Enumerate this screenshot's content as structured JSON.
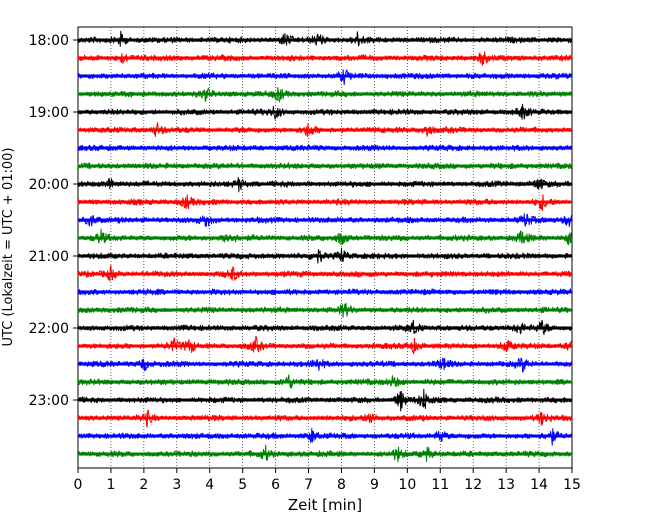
{
  "chart_data": {
    "type": "helicorder",
    "xlabel": "Zeit  [min]",
    "ylabel": "UTC (Lokalzeit = UTC + 01:00)",
    "xlim": [
      0,
      15
    ],
    "x_ticks": [
      "0",
      "1",
      "2",
      "3",
      "4",
      "5",
      "6",
      "7",
      "8",
      "9",
      "10",
      "11",
      "12",
      "13",
      "14",
      "15"
    ],
    "y_tick_labels": [
      "18:00",
      "19:00",
      "20:00",
      "21:00",
      "22:00",
      "23:00"
    ],
    "y_tick_rows": [
      0,
      4,
      8,
      12,
      16,
      20
    ],
    "grid": "vertical dotted lines at each minute",
    "row_colors": [
      "#000000",
      "#ff0000",
      "#0000ff",
      "#008000"
    ],
    "rows": [
      {
        "start": "18:00",
        "events": [
          1.3,
          6.3,
          7.3,
          8.5
        ]
      },
      {
        "start": "18:15",
        "events": [
          1.4,
          12.3
        ]
      },
      {
        "start": "18:30",
        "events": [
          8.1
        ]
      },
      {
        "start": "18:45",
        "events": [
          3.9,
          6.1
        ]
      },
      {
        "start": "19:00",
        "events": [
          6.0,
          13.5
        ]
      },
      {
        "start": "19:15",
        "events": [
          2.4,
          7.0,
          10.6
        ]
      },
      {
        "start": "19:30",
        "events": []
      },
      {
        "start": "19:45",
        "events": []
      },
      {
        "start": "20:00",
        "events": [
          1.0,
          4.9,
          14.0
        ]
      },
      {
        "start": "20:15",
        "events": [
          3.3,
          14.1
        ]
      },
      {
        "start": "20:30",
        "events": [
          0.4,
          3.9,
          13.6,
          14.9
        ]
      },
      {
        "start": "20:45",
        "events": [
          0.7,
          4.6,
          8.0,
          13.5,
          14.9
        ]
      },
      {
        "start": "21:00",
        "events": [
          7.3,
          8.0
        ]
      },
      {
        "start": "21:15",
        "events": [
          1.0,
          4.7
        ]
      },
      {
        "start": "21:30",
        "events": []
      },
      {
        "start": "21:45",
        "events": [
          8.1
        ]
      },
      {
        "start": "22:00",
        "events": [
          10.2,
          13.4,
          14.1
        ]
      },
      {
        "start": "22:15",
        "events": [
          2.9,
          3.4,
          5.4,
          10.2,
          13.0,
          15.0
        ]
      },
      {
        "start": "22:30",
        "events": [
          2.0,
          7.3,
          11.1,
          13.5
        ]
      },
      {
        "start": "22:45",
        "events": [
          6.4,
          9.6
        ]
      },
      {
        "start": "23:00",
        "events": [
          9.8,
          10.5
        ]
      },
      {
        "start": "23:15",
        "events": [
          2.1,
          8.9,
          14.1
        ]
      },
      {
        "start": "23:30",
        "events": [
          7.1,
          11.0,
          14.4
        ]
      },
      {
        "start": "23:45",
        "events": [
          5.7,
          9.7,
          10.6
        ]
      }
    ]
  }
}
